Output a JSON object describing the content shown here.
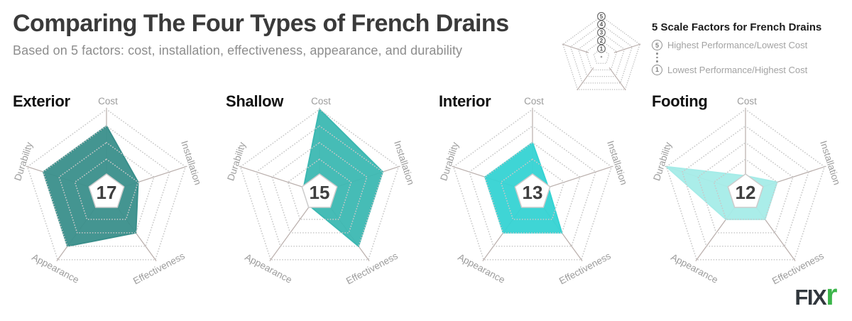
{
  "header": {
    "title": "Comparing The Four Types of French Drains",
    "subtitle": "Based on 5 factors: cost, installation, effectiveness, appearance, and durability"
  },
  "legend": {
    "title": "5 Scale Factors for French Drains",
    "scale_high": {
      "value": "5",
      "label": "Highest Performance/Lowest Cost"
    },
    "scale_low": {
      "value": "1",
      "label": "Lowest Performance/Highest Cost"
    },
    "ring_numbers": [
      "5",
      "4",
      "3",
      "2",
      "1"
    ]
  },
  "logo": {
    "main": "FIX",
    "accent": "r",
    "main_color": "#31373d",
    "accent_color": "#3bb54a"
  },
  "colors": {
    "title_text": "#3a3a3a",
    "subtitle_text": "#8d8d8d",
    "axis_line": "#b9aeab",
    "grid_ring": "#c8c8c8",
    "axis_label": "#9c9c9c",
    "badge_fill": "#ffffff",
    "badge_stroke": "#cccccc",
    "badge_text": "#3e3e3e"
  },
  "chart_data": {
    "type": "radar",
    "grid": "dotted pentagon rings, 5 levels",
    "scale_min": 1,
    "scale_max": 5,
    "axes": [
      "Cost",
      "Installation",
      "Effectiveness",
      "Appearance",
      "Durability"
    ],
    "series": [
      {
        "name": "Exterior",
        "total": 17,
        "color": "#3a8f8b",
        "values": [
          4,
          2,
          3,
          4,
          4
        ]
      },
      {
        "name": "Shallow",
        "total": 15,
        "color": "#3cb8b2",
        "values": [
          5,
          4,
          4,
          1,
          1
        ]
      },
      {
        "name": "Interior",
        "total": 13,
        "color": "#35d3d3",
        "values": [
          3,
          1,
          3,
          3,
          3
        ]
      },
      {
        "name": "Footing",
        "total": 12,
        "color": "#a5ece8",
        "values": [
          1,
          2,
          2,
          2,
          5
        ]
      }
    ]
  }
}
